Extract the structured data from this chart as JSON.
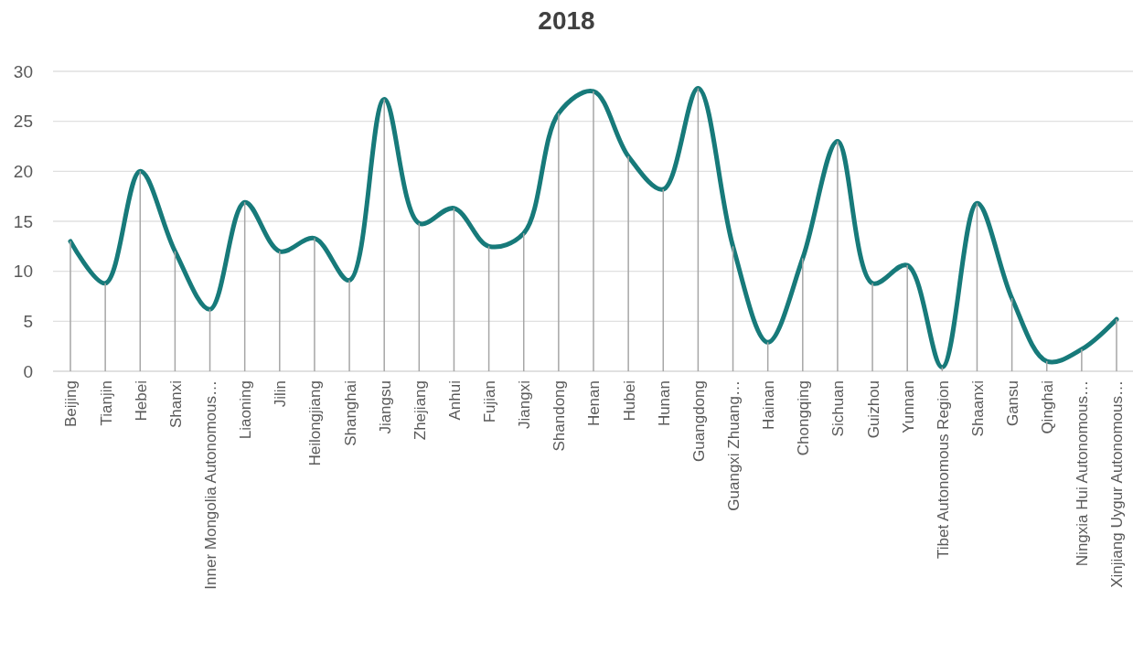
{
  "chart_data": {
    "type": "line",
    "title": "2018",
    "categories": [
      "Beijing",
      "Tianjin",
      "Hebei",
      "Shanxi",
      "Inner Mongolia Autonomous…",
      "Liaoning",
      "Jilin",
      "Heilongjiang",
      "Shanghai",
      "Jiangsu",
      "Zhejiang",
      "Anhui",
      "Fujian",
      "Jiangxi",
      "Shandong",
      "Henan",
      "Hubei",
      "Hunan",
      "Guangdong",
      "Guangxi Zhuang…",
      "Hainan",
      "Chongqing",
      "Sichuan",
      "Guizhou",
      "Yunnan",
      "Tibet Autonomous Region",
      "Shaanxi",
      "Gansu",
      "Qinghai",
      "Ningxia Hui Autonomous…",
      "Xinjiang Uygur Autonomous…"
    ],
    "series": [
      {
        "color": "#177a7a",
        "values": [
          13,
          8.8,
          20,
          12,
          6.2,
          16.9,
          12,
          13.3,
          9.1,
          27.2,
          14.8,
          16.3,
          12.5,
          13.8,
          25.8,
          28,
          21.5,
          18.2,
          28.3,
          12.5,
          2.9,
          11.3,
          23,
          8.8,
          10.6,
          0.4,
          16.8,
          7.3,
          1,
          2.2,
          5.2
        ]
      },
      {
        "type": "bar",
        "color": "#a6a6a6",
        "values": [
          13,
          8.8,
          20,
          12,
          6.2,
          16.9,
          12,
          13.3,
          9.1,
          27.2,
          14.8,
          16.3,
          12.5,
          13.8,
          25.8,
          28,
          21.5,
          18.2,
          28.3,
          12.5,
          2.9,
          11.3,
          23,
          8.8,
          10.6,
          0.4,
          16.8,
          7.3,
          1,
          2.2,
          5.2
        ]
      }
    ],
    "ylim": [
      0,
      30
    ],
    "yticks": [
      0,
      5,
      10,
      15,
      20,
      25,
      30
    ],
    "grid": "y",
    "marker": "none",
    "line_style": "solid"
  }
}
